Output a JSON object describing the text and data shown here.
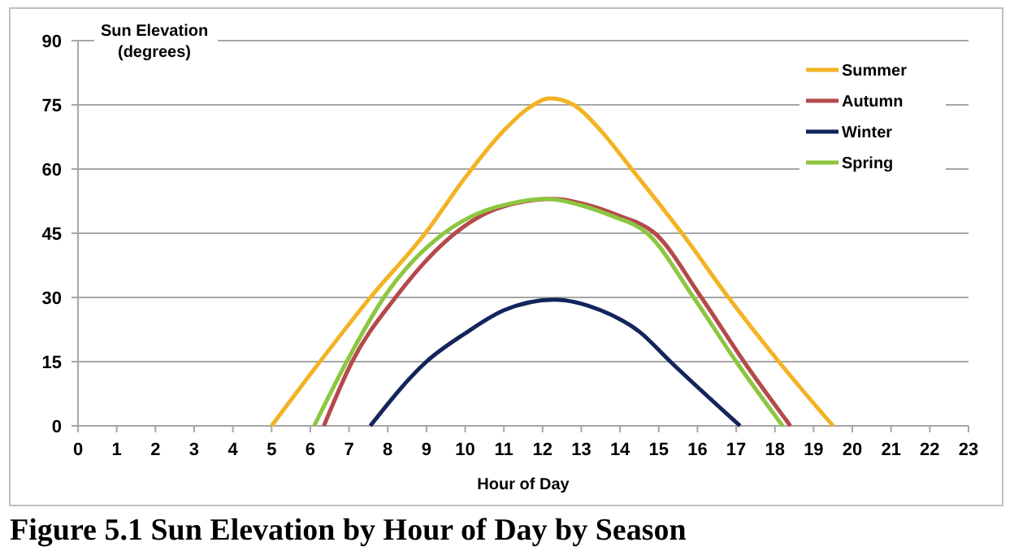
{
  "chart_data": {
    "type": "line",
    "title": "Figure 5.1  Sun Elevation by Hour of Day by Season",
    "xlabel": "Hour of Day",
    "ylabel": "Sun Elevation\n(degrees)",
    "xlim": [
      0,
      23
    ],
    "xticks": [
      0,
      1,
      2,
      3,
      4,
      5,
      6,
      7,
      8,
      9,
      10,
      11,
      12,
      13,
      14,
      15,
      16,
      17,
      18,
      19,
      20,
      21,
      22,
      23
    ],
    "ylim": [
      0,
      90
    ],
    "yticks": [
      0,
      15,
      30,
      45,
      60,
      75,
      90
    ],
    "grid": "y",
    "legend": "top right",
    "marker": "none",
    "line_style": "solid",
    "series": [
      {
        "name": "Summer",
        "color": "#f2b324",
        "x": [
          5,
          6.25,
          7.55,
          8.97,
          10,
          11,
          11.6,
          12.2,
          12.8,
          13.5,
          14.3,
          15,
          15.6,
          16.8,
          18.1,
          19.5
        ],
        "values": [
          0,
          15,
          30,
          45,
          58,
          69,
          74,
          76.5,
          75,
          69,
          60,
          52,
          45,
          30,
          15,
          0
        ]
      },
      {
        "name": "Autumn",
        "color": "#b5494b",
        "x": [
          6.35,
          7.08,
          8.2,
          9.74,
          10.5,
          11.3,
          12.3,
          13.2,
          14,
          14.9,
          16.1,
          17.2,
          18.4
        ],
        "values": [
          0,
          15,
          30,
          45,
          49.5,
          52,
          53,
          51.5,
          49,
          45,
          30,
          15,
          0
        ]
      },
      {
        "name": "Winter",
        "color": "#14245c",
        "x": [
          7.55,
          9,
          10,
          11,
          12.3,
          13.5,
          14.5,
          15.3,
          17.1
        ],
        "values": [
          0,
          15,
          21.6,
          27,
          29.5,
          27,
          22,
          15,
          0
        ]
      },
      {
        "name": "Spring",
        "color": "#8dc641",
        "x": [
          6.1,
          6.94,
          7.9,
          9.45,
          10.3,
          11.2,
          12.1,
          13,
          13.8,
          14.7,
          15.9,
          17,
          18.2
        ],
        "values": [
          0,
          15,
          30,
          45,
          49.5,
          52,
          53,
          51.5,
          49,
          45,
          30,
          15,
          0
        ]
      }
    ]
  }
}
